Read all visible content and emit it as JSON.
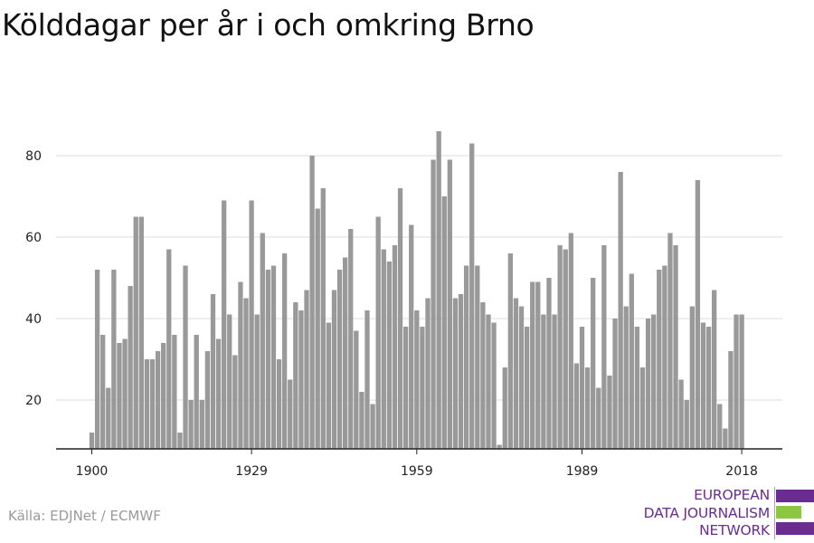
{
  "chart_data": {
    "type": "bar",
    "title": "Kölddagar per år i och omkring Brno",
    "xlabel": "",
    "ylabel": "",
    "x_start": 1900,
    "x_ticks": [
      "1900",
      "1929",
      "1959",
      "1989",
      "2018"
    ],
    "y_ticks": [
      "20",
      "40",
      "60",
      "80"
    ],
    "ylim": [
      8,
      90
    ],
    "grid": true,
    "bar_color": "#999999",
    "values": [
      12,
      52,
      36,
      23,
      52,
      34,
      35,
      48,
      65,
      65,
      30,
      30,
      32,
      34,
      57,
      36,
      12,
      53,
      20,
      36,
      20,
      32,
      46,
      35,
      69,
      41,
      31,
      49,
      45,
      69,
      41,
      61,
      52,
      53,
      30,
      56,
      25,
      44,
      42,
      47,
      80,
      67,
      72,
      39,
      47,
      52,
      55,
      62,
      37,
      22,
      42,
      19,
      65,
      57,
      54,
      58,
      72,
      38,
      63,
      42,
      38,
      45,
      79,
      86,
      70,
      79,
      45,
      46,
      53,
      83,
      53,
      44,
      41,
      39,
      9,
      28,
      56,
      45,
      43,
      38,
      49,
      49,
      41,
      50,
      41,
      58,
      57,
      61,
      29,
      38,
      28,
      50,
      23,
      58,
      26,
      40,
      76,
      43,
      51,
      38,
      28,
      40,
      41,
      52,
      53,
      61,
      58,
      25,
      20,
      43,
      74,
      39,
      38,
      47,
      19,
      13,
      32,
      41,
      41
    ]
  },
  "source": "Källa: EDJNet / ECMWF",
  "logo": {
    "line1": "EUROPEAN",
    "line2": "DATA JOURNALISM",
    "line3": "NETWORK",
    "colors": {
      "purple": "#6a2c91",
      "green": "#8dc63f"
    }
  }
}
